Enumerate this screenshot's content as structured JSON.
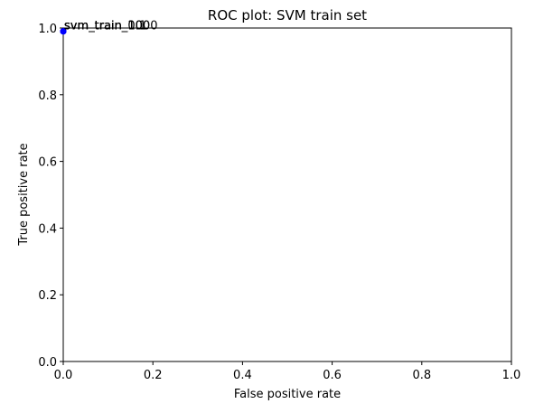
{
  "chart_data": {
    "type": "scatter",
    "title": "ROC plot: SVM train set",
    "xlabel": "False positive rate",
    "ylabel": "True positive rate",
    "xlim": [
      0.0,
      1.0
    ],
    "ylim": [
      0.0,
      1.0
    ],
    "x_ticks": [
      "0.0",
      "0.2",
      "0.4",
      "0.6",
      "0.8",
      "1.0"
    ],
    "y_ticks": [
      "0.0",
      "0.2",
      "0.4",
      "0.6",
      "0.8",
      "1.0"
    ],
    "grid": false,
    "points": [
      {
        "x": 0.0,
        "y": 0.99,
        "label": "svm_train_1000"
      },
      {
        "x": 0.0,
        "y": 0.99,
        "label": "svm_train_100"
      },
      {
        "x": 0.0,
        "y": 0.99,
        "label": "svm_train_10"
      },
      {
        "x": 0.0,
        "y": 0.99,
        "label": "svm_train_1"
      },
      {
        "x": 0.0,
        "y": 0.99,
        "label": "svm_train_0.1"
      }
    ],
    "point_color": "#0000ff"
  }
}
